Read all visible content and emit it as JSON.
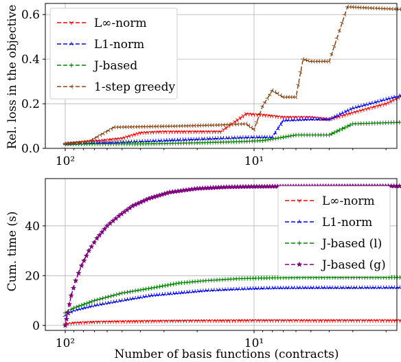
{
  "colors": {
    "Linf": "#ff0000",
    "L1": "#0000ff",
    "J": "#008000",
    "greedy": "#8b4513",
    "Jg": "#800080"
  },
  "chart_data": [
    {
      "type": "line",
      "ylabel": "Rel. loss in the objective",
      "xlabel": "",
      "x_scale": "log (reversed)",
      "x_tick_labels": [
        "10²",
        "10¹"
      ],
      "ylim": [
        0,
        0.65
      ],
      "y_ticks": [
        0.0,
        0.2,
        0.4,
        0.6
      ],
      "y_tick_labels": [
        "0.0",
        "0.2",
        "0.4",
        "0.6"
      ],
      "grid": true,
      "legend_position": "top-left",
      "legend": [
        "L∞-norm",
        "L1-norm",
        "J-based",
        "1-step greedy"
      ],
      "series": [
        {
          "name": "L∞-norm",
          "color_key": "Linf",
          "marker": "tri_down",
          "points": [
            [
              100,
              0.02
            ],
            [
              80,
              0.03
            ],
            [
              65,
              0.035
            ],
            [
              50,
              0.045
            ],
            [
              40,
              0.07
            ],
            [
              30,
              0.075
            ],
            [
              15,
              0.075
            ],
            [
              11,
              0.155
            ],
            [
              9,
              0.15
            ],
            [
              7,
              0.14
            ],
            [
              5,
              0.14
            ],
            [
              4,
              0.13
            ],
            [
              3,
              0.16
            ],
            [
              2,
              0.2
            ],
            [
              1.5,
              0.25
            ],
            [
              1.3,
              0.265
            ]
          ]
        },
        {
          "name": "L1-norm",
          "color_key": "L1",
          "marker": "tri_up",
          "points": [
            [
              100,
              0.02
            ],
            [
              60,
              0.025
            ],
            [
              30,
              0.035
            ],
            [
              15,
              0.045
            ],
            [
              10,
              0.05
            ],
            [
              8,
              0.05
            ],
            [
              7,
              0.125
            ],
            [
              5,
              0.13
            ],
            [
              4,
              0.13
            ],
            [
              3,
              0.18
            ],
            [
              2,
              0.22
            ],
            [
              1.3,
              0.26
            ]
          ]
        },
        {
          "name": "J-based",
          "color_key": "J",
          "marker": "plus",
          "points": [
            [
              100,
              0.02
            ],
            [
              40,
              0.02
            ],
            [
              20,
              0.025
            ],
            [
              12,
              0.03
            ],
            [
              9,
              0.035
            ],
            [
              7,
              0.05
            ],
            [
              6,
              0.06
            ],
            [
              4,
              0.06
            ],
            [
              3,
              0.11
            ],
            [
              1.3,
              0.12
            ]
          ]
        },
        {
          "name": "1-step greedy",
          "color_key": "greedy",
          "marker": "tri_left",
          "points": [
            [
              100,
              0.02
            ],
            [
              75,
              0.03
            ],
            [
              65,
              0.06
            ],
            [
              55,
              0.095
            ],
            [
              25,
              0.1
            ],
            [
              15,
              0.105
            ],
            [
              11,
              0.11
            ],
            [
              10,
              0.085
            ],
            [
              9,
              0.19
            ],
            [
              8,
              0.26
            ],
            [
              7,
              0.23
            ],
            [
              6,
              0.23
            ],
            [
              5.5,
              0.4
            ],
            [
              5,
              0.39
            ],
            [
              4,
              0.39
            ],
            [
              3.2,
              0.635
            ],
            [
              2.5,
              0.63
            ],
            [
              1.3,
              0.62
            ]
          ]
        }
      ]
    },
    {
      "type": "line",
      "ylabel": "Cum. time (s)",
      "xlabel": "Number of basis functions (contracts)",
      "x_scale": "log (reversed)",
      "x_tick_labels": [
        "10²",
        "10¹"
      ],
      "ylim": [
        -2,
        59
      ],
      "y_ticks": [
        0,
        20,
        40
      ],
      "y_tick_labels": [
        "0",
        "20",
        "40"
      ],
      "grid": true,
      "legend_position": "right",
      "legend": [
        "L∞-norm",
        "L1-norm",
        "J-based (l)",
        "J-based (g)"
      ],
      "series": [
        {
          "name": "L∞-norm",
          "color_key": "Linf",
          "marker": "tri_down",
          "points": [
            [
              100,
              0.5
            ],
            [
              90,
              1.0
            ],
            [
              70,
              1.4
            ],
            [
              40,
              1.7
            ],
            [
              20,
              1.9
            ],
            [
              10,
              2.0
            ],
            [
              5,
              2.0
            ],
            [
              1.3,
              2.0
            ]
          ]
        },
        {
          "name": "L1-norm",
          "color_key": "L1",
          "marker": "tri_up",
          "points": [
            [
              100,
              4
            ],
            [
              90,
              6
            ],
            [
              70,
              8
            ],
            [
              50,
              10
            ],
            [
              35,
              12
            ],
            [
              25,
              13
            ],
            [
              18,
              14
            ],
            [
              12,
              14.6
            ],
            [
              8,
              15
            ],
            [
              5,
              15.1
            ],
            [
              1.3,
              15.2
            ]
          ]
        },
        {
          "name": "J-based (l)",
          "color_key": "J",
          "marker": "plus",
          "points": [
            [
              100,
              5
            ],
            [
              90,
              7
            ],
            [
              70,
              10
            ],
            [
              50,
              13
            ],
            [
              35,
              15
            ],
            [
              25,
              17
            ],
            [
              18,
              18
            ],
            [
              12,
              18.8
            ],
            [
              8,
              19.1
            ],
            [
              5,
              19.3
            ],
            [
              1.3,
              19.3
            ]
          ]
        },
        {
          "name": "J-based (g)",
          "color_key": "Jg",
          "marker": "star",
          "points": [
            [
              100,
              0
            ],
            [
              97,
              5
            ],
            [
              93,
              12
            ],
            [
              88,
              18
            ],
            [
              82,
              24
            ],
            [
              75,
              30
            ],
            [
              68,
              35
            ],
            [
              60,
              40
            ],
            [
              52,
              44
            ],
            [
              44,
              48
            ],
            [
              36,
              51
            ],
            [
              28,
              53.5
            ],
            [
              20,
              55
            ],
            [
              14,
              55.6
            ],
            [
              10,
              55.8
            ],
            [
              6,
              55.9
            ],
            [
              3,
              56
            ],
            [
              1.3,
              56
            ]
          ]
        }
      ]
    }
  ]
}
